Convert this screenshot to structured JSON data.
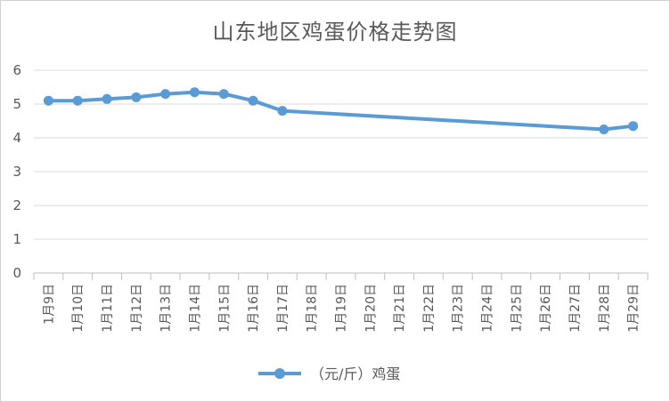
{
  "chart_data": {
    "type": "line",
    "title": "山东地区鸡蛋价格走势图",
    "categories": [
      "1月9日",
      "1月10日",
      "1月11日",
      "1月12日",
      "1月13日",
      "1月14日",
      "1月15日",
      "1月16日",
      "1月17日",
      "1月18日",
      "1月19日",
      "1月20日",
      "1月21日",
      "1月22日",
      "1月23日",
      "1月24日",
      "1月25日",
      "1月26日",
      "1月27日",
      "1月28日",
      "1月29日"
    ],
    "series": [
      {
        "name": "（元/斤）鸡蛋",
        "values": [
          5.1,
          5.1,
          5.15,
          5.2,
          5.3,
          5.35,
          5.3,
          5.1,
          4.8,
          null,
          null,
          null,
          null,
          null,
          null,
          null,
          null,
          null,
          null,
          4.25,
          4.35
        ]
      }
    ],
    "ylim": [
      0,
      6
    ],
    "yticks": [
      0,
      1,
      2,
      3,
      4,
      5,
      6
    ],
    "xlabel": "",
    "ylabel": "",
    "grid": true,
    "legend": "bottom",
    "colors": {
      "line": "#5b9bd5",
      "grid": "#d9d9d9",
      "text": "#595959"
    }
  }
}
